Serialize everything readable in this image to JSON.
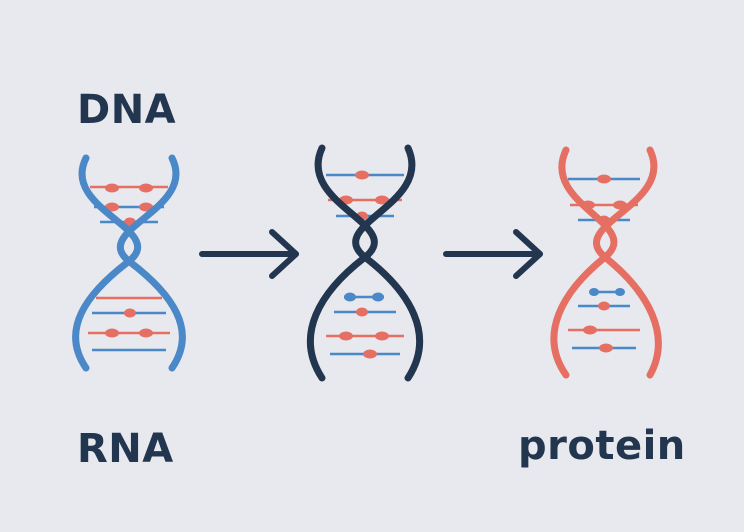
{
  "labels": {
    "dna": "DNA",
    "rna": "RNA",
    "protein": "protein"
  },
  "colors": {
    "background": "#e8e9ee",
    "text": "#23364f",
    "dna_strand": "#4a88c7",
    "dark_strand": "#23364f",
    "red_strand": "#e56f62",
    "rung_red": "#e56f62",
    "rung_blue": "#4a88c7",
    "arrow": "#23364f"
  },
  "icons": [
    "dna-helix-blue",
    "dna-helix-dark",
    "dna-helix-red",
    "right-arrow-icon",
    "right-arrow-icon"
  ]
}
